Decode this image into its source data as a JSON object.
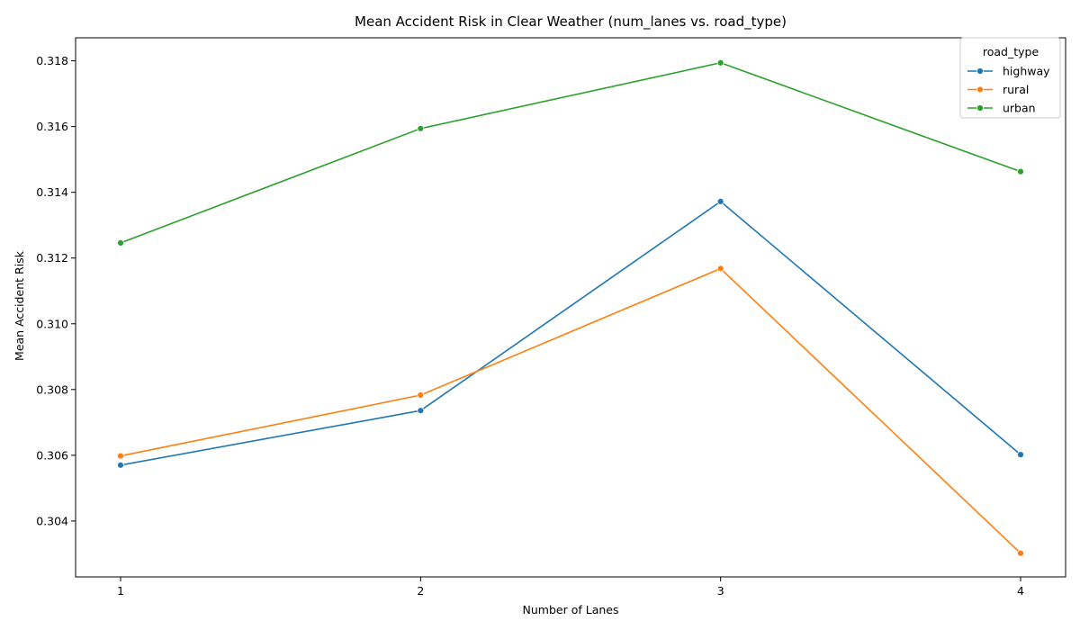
{
  "chart_data": {
    "type": "line",
    "title": "Mean Accident Risk in Clear Weather (num_lanes vs. road_type)",
    "xlabel": "Number of Lanes",
    "ylabel": "Mean Accident Risk",
    "x": [
      1,
      2,
      3,
      4
    ],
    "x_ticks": [
      "1",
      "2",
      "3",
      "4"
    ],
    "ylim": [
      0.3023,
      0.3187
    ],
    "y_ticks": [
      "0.304",
      "0.306",
      "0.308",
      "0.310",
      "0.312",
      "0.314",
      "0.316",
      "0.318"
    ],
    "grid": false,
    "legend_title": "road_type",
    "legend_position": "top-right",
    "series": [
      {
        "name": "highway",
        "color": "#1f77b4",
        "values": [
          0.3057,
          0.30736,
          0.31372,
          0.30602
        ]
      },
      {
        "name": "rural",
        "color": "#ff7f0e",
        "values": [
          0.30598,
          0.30783,
          0.31168,
          0.30302
        ]
      },
      {
        "name": "urban",
        "color": "#2ca02c",
        "values": [
          0.31246,
          0.31594,
          0.31794,
          0.31463
        ]
      }
    ]
  }
}
